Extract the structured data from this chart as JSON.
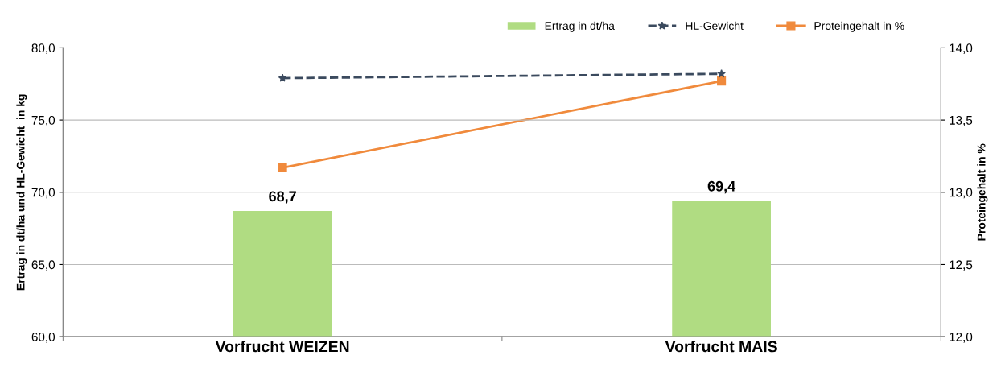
{
  "chart_data": {
    "type": "bar",
    "categories": [
      "Vorfrucht WEIZEN",
      "Vorfrucht MAIS"
    ],
    "ylabel": "Ertrag in dt/ha und HL-Gewicht  in kg",
    "y2label": "Proteingehalt in %",
    "series": [
      {
        "name": "Ertrag in dt/ha",
        "color": "#b0dc82",
        "values": [
          68.7,
          69.4
        ],
        "value_labels": [
          "68,7",
          "69,4"
        ]
      },
      {
        "name": "HL-Gewicht",
        "type": "line",
        "color": "#3b4a5e",
        "values": [
          77.9,
          78.2
        ],
        "marker": "star",
        "line_style": "dashed"
      },
      {
        "name": "Proteingehalt in %",
        "type": "line",
        "color": "#f08a3c",
        "values": [
          13.17,
          13.77
        ],
        "marker": "square",
        "line_style": "solid",
        "axis": "y2"
      }
    ],
    "ylim": [
      60,
      80
    ],
    "yticks": [
      {
        "value": 60,
        "label": "60,0"
      },
      {
        "value": 65,
        "label": "65,0"
      },
      {
        "value": 70,
        "label": "70,0"
      },
      {
        "value": 75,
        "label": "75,0"
      },
      {
        "value": 80,
        "label": "80,0"
      }
    ],
    "y2lim": [
      12,
      14
    ],
    "y2ticks": [
      {
        "value": 12,
        "label": "12,0"
      },
      {
        "value": 12.5,
        "label": "12,5"
      },
      {
        "value": 13,
        "label": "13,0"
      },
      {
        "value": 13.5,
        "label": "13,5"
      },
      {
        "value": 14,
        "label": "14,0"
      }
    ],
    "grid": "y",
    "legend": "top right"
  }
}
